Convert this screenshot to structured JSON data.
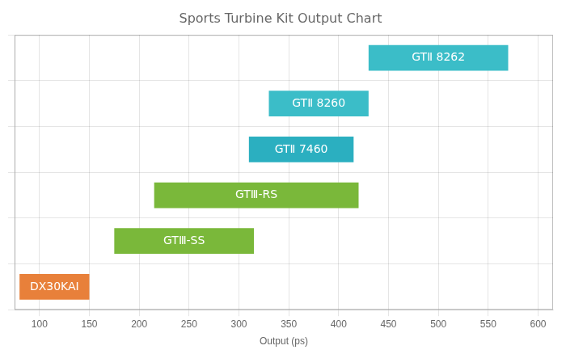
{
  "chart_data": {
    "type": "bar",
    "orientation": "horizontal",
    "title": "Sports Turbine Kit Output Chart",
    "xlabel": "Output (ps)",
    "categories": [
      "GTⅡ 8262",
      "GTⅡ 8260",
      "GTⅡ 7460",
      "GTⅢ-RS",
      "GTⅢ-SS",
      "DX30KAI"
    ],
    "values": [
      [
        430,
        570
      ],
      [
        330,
        430
      ],
      [
        310,
        415
      ],
      [
        215,
        420
      ],
      [
        175,
        315
      ],
      [
        80,
        150
      ]
    ],
    "colors": [
      "#3bbdc8",
      "#3bbdc8",
      "#2bafc0",
      "#7ab83a",
      "#7ab83a",
      "#e8803a"
    ],
    "xlim": [
      75,
      615
    ],
    "xticks": [
      100,
      150,
      200,
      250,
      300,
      350,
      400,
      450,
      500,
      550,
      600
    ],
    "grid": true,
    "tick_labels": "x"
  }
}
